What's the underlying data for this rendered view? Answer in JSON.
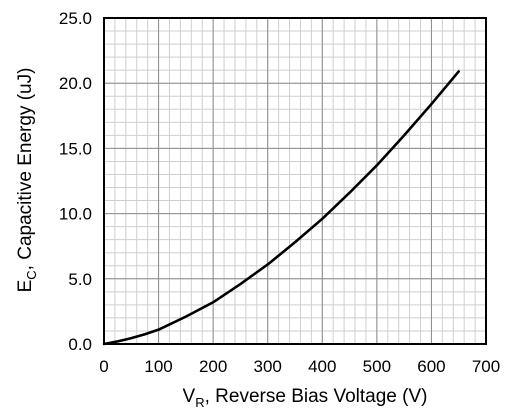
{
  "chart_data": {
    "type": "line",
    "title": "",
    "xlabel": {
      "main": "V",
      "sub": "R",
      "rest": ", Reverse Bias Voltage (V)"
    },
    "ylabel": {
      "main": "E",
      "sub": "C",
      "rest": ", Capacitive Energy (uJ)"
    },
    "xlim": [
      0,
      700
    ],
    "ylim": [
      0,
      25
    ],
    "x_ticks": [
      "0",
      "100",
      "200",
      "300",
      "400",
      "500",
      "600",
      "700"
    ],
    "y_ticks": [
      "0.0",
      "5.0",
      "10.0",
      "15.0",
      "20.0",
      "25.0"
    ],
    "grid": true,
    "minor_grid": {
      "x_step": 20,
      "y_step": 1
    },
    "series": [
      {
        "color": "#000000",
        "x": [
          0,
          25,
          50,
          75,
          100,
          150,
          200,
          250,
          300,
          350,
          400,
          450,
          500,
          550,
          600,
          650
        ],
        "y": [
          0.0,
          0.2,
          0.45,
          0.75,
          1.1,
          2.1,
          3.2,
          4.6,
          6.1,
          7.8,
          9.6,
          11.6,
          13.7,
          16.0,
          18.4,
          20.9
        ]
      }
    ]
  }
}
